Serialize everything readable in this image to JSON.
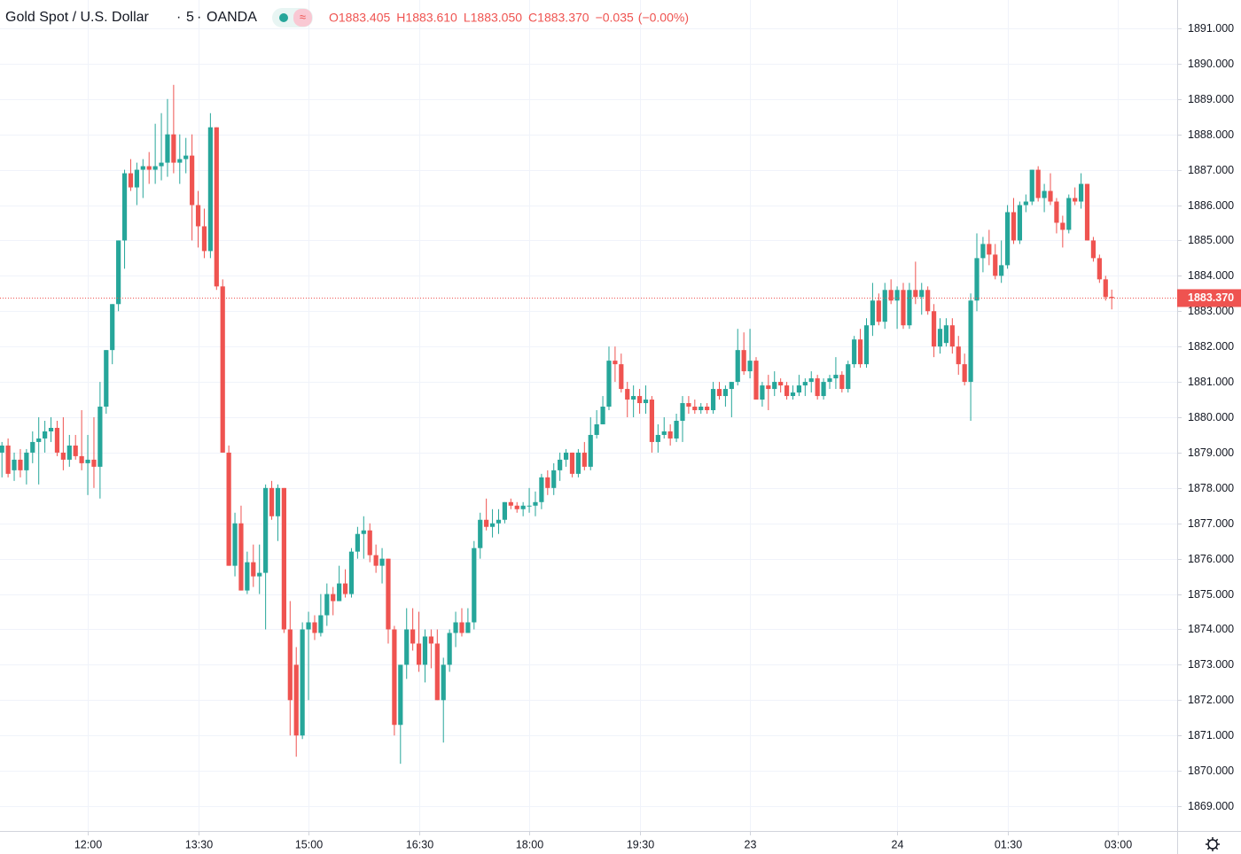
{
  "header": {
    "symbol": "Gold Spot / U.S. Dollar",
    "interval": "5",
    "exchange": "OANDA",
    "ohlc": [
      {
        "label": "O",
        "value": "1883.405"
      },
      {
        "label": "H",
        "value": "1883.610"
      },
      {
        "label": "L",
        "value": "1883.050"
      },
      {
        "label": "C",
        "value": "1883.370"
      }
    ],
    "change": "−0.035",
    "change_percent": "(−0.00%)"
  },
  "chart_data": {
    "type": "candlestick",
    "up_color": "#26a69a",
    "down_color": "#ef5350",
    "grid": true,
    "ylim": [
      1868.3,
      1891.8
    ],
    "yticks": [
      {
        "value": 1869,
        "label": "1869.000"
      },
      {
        "value": 1870,
        "label": "1870.000"
      },
      {
        "value": 1871,
        "label": "1871.000"
      },
      {
        "value": 1872,
        "label": "1872.000"
      },
      {
        "value": 1873,
        "label": "1873.000"
      },
      {
        "value": 1874,
        "label": "1874.000"
      },
      {
        "value": 1875,
        "label": "1875.000"
      },
      {
        "value": 1876,
        "label": "1876.000"
      },
      {
        "value": 1877,
        "label": "1877.000"
      },
      {
        "value": 1878,
        "label": "1878.000"
      },
      {
        "value": 1879,
        "label": "1879.000"
      },
      {
        "value": 1880,
        "label": "1880.000"
      },
      {
        "value": 1881,
        "label": "1881.000"
      },
      {
        "value": 1882,
        "label": "1882.000"
      },
      {
        "value": 1883,
        "label": "1883.000"
      },
      {
        "value": 1884,
        "label": "1884.000"
      },
      {
        "value": 1885,
        "label": "1885.000"
      },
      {
        "value": 1886,
        "label": "1886.000"
      },
      {
        "value": 1887,
        "label": "1887.000"
      },
      {
        "value": 1888,
        "label": "1888.000"
      },
      {
        "value": 1889,
        "label": "1889.000"
      },
      {
        "value": 1890,
        "label": "1890.000"
      },
      {
        "value": 1891,
        "label": "1891.000"
      }
    ],
    "last_price": {
      "value": 1883.37,
      "label": "1883.370"
    },
    "categories": [
      null,
      null,
      null,
      null,
      null,
      null,
      null,
      null,
      null,
      null,
      null,
      null,
      null,
      null,
      "12:00",
      null,
      null,
      null,
      null,
      null,
      null,
      null,
      null,
      null,
      null,
      null,
      null,
      null,
      null,
      null,
      null,
      null,
      "13:30",
      null,
      null,
      null,
      null,
      null,
      null,
      null,
      null,
      null,
      null,
      null,
      null,
      null,
      null,
      null,
      null,
      null,
      "15:00",
      null,
      null,
      null,
      null,
      null,
      null,
      null,
      null,
      null,
      null,
      null,
      null,
      null,
      null,
      null,
      null,
      null,
      "16:30",
      null,
      null,
      null,
      null,
      null,
      null,
      null,
      null,
      null,
      null,
      null,
      null,
      null,
      null,
      null,
      null,
      null,
      "18:00",
      null,
      null,
      null,
      null,
      null,
      null,
      null,
      null,
      null,
      null,
      null,
      null,
      null,
      null,
      null,
      null,
      null,
      "19:30",
      null,
      null,
      null,
      null,
      null,
      null,
      null,
      null,
      null,
      null,
      null,
      null,
      null,
      null,
      null,
      null,
      null,
      "23",
      null,
      null,
      null,
      null,
      null,
      null,
      null,
      null,
      null,
      null,
      null,
      null,
      null,
      null,
      null,
      null,
      null,
      null,
      null,
      null,
      null,
      null,
      null,
      "24",
      null,
      null,
      null,
      null,
      null,
      null,
      null,
      null,
      null,
      null,
      null,
      null,
      null,
      null,
      null,
      null,
      null,
      "01:30",
      null,
      null,
      null,
      null,
      null,
      null,
      null,
      null,
      null,
      null,
      null,
      null,
      null,
      null,
      null,
      null,
      null,
      "03:00"
    ],
    "open": [
      1879.0,
      1879.2,
      1878.5,
      1878.8,
      1878.5,
      1879.0,
      1879.3,
      1879.4,
      1879.6,
      1879.7,
      1879.0,
      1878.8,
      1879.2,
      1878.9,
      1878.7,
      1878.8,
      1878.6,
      1880.3,
      1881.9,
      1883.2,
      1885.0,
      1886.9,
      1886.5,
      1887.0,
      1887.1,
      1887.0,
      1887.1,
      1887.2,
      1888.0,
      1887.2,
      1887.3,
      1887.4,
      1886.0,
      1885.4,
      1884.7,
      1888.2,
      1883.7,
      1879.0,
      1875.8,
      1877.0,
      1875.1,
      1875.9,
      1875.5,
      1875.6,
      1878.0,
      1877.2,
      1878.0,
      1874.0,
      1873.0,
      1871.0,
      1874.0,
      1874.2,
      1873.9,
      1874.4,
      1875.0,
      1874.8,
      1875.3,
      1875.0,
      1876.2,
      1876.7,
      1876.8,
      1876.1,
      1875.8,
      1876.0,
      1874.0,
      1871.3,
      1873.0,
      1874.0,
      1873.6,
      1873.0,
      1873.8,
      1873.6,
      1872.0,
      1873.0,
      1873.9,
      1874.2,
      1873.9,
      1874.2,
      1876.3,
      1877.1,
      1876.9,
      1877.0,
      1877.1,
      1877.6,
      1877.5,
      1877.4,
      1877.5,
      1877.5,
      1877.6,
      1878.3,
      1878.0,
      1878.5,
      1878.8,
      1879.0,
      1878.4,
      1879.0,
      1878.6,
      1879.5,
      1879.8,
      1880.3,
      1881.6,
      1881.5,
      1880.8,
      1880.5,
      1880.6,
      1880.4,
      1880.5,
      1879.3,
      1879.5,
      1879.6,
      1879.4,
      1879.9,
      1880.4,
      1880.3,
      1880.2,
      1880.3,
      1880.2,
      1880.8,
      1880.6,
      1880.8,
      1881.0,
      1881.9,
      1881.3,
      1881.6,
      1880.5,
      1880.9,
      1880.8,
      1881.0,
      1880.9,
      1880.6,
      1880.7,
      1880.9,
      1881.0,
      1881.1,
      1880.6,
      1881.0,
      1881.1,
      1881.2,
      1880.8,
      1881.5,
      1882.2,
      1881.5,
      1882.6,
      1883.3,
      1882.7,
      1883.6,
      1883.3,
      1883.6,
      1882.6,
      1883.6,
      1883.4,
      1883.6,
      1883.0,
      1882.0,
      1882.1,
      1882.6,
      1882.0,
      1881.5,
      1881.0,
      1883.3,
      1884.5,
      1884.9,
      1884.6,
      1884.0,
      1884.3,
      1885.8,
      1885.0,
      1886.0,
      1886.1,
      1887.0,
      1886.2,
      1886.4,
      1886.1,
      1885.5,
      1885.3,
      1886.2,
      1886.1,
      1886.6,
      1885.0,
      1884.5,
      1883.9,
      1883.405,
      null
    ],
    "high": [
      1879.3,
      1879.4,
      1879.0,
      1879.1,
      1879.1,
      1879.6,
      1880.0,
      1879.9,
      1880.0,
      1879.9,
      1880.0,
      1879.5,
      1879.5,
      1880.2,
      1879.5,
      1880.0,
      1881.0,
      1881.9,
      1883.2,
      1885.0,
      1887.0,
      1887.3,
      1887.2,
      1887.3,
      1887.5,
      1888.3,
      1888.6,
      1889.0,
      1889.4,
      1888.0,
      1887.9,
      1888.0,
      1886.4,
      1885.9,
      1888.6,
      1888.2,
      1883.9,
      1879.2,
      1877.3,
      1877.5,
      1876.2,
      1876.4,
      1876.4,
      1878.1,
      1878.2,
      1878.1,
      1878.0,
      1874.8,
      1873.5,
      1874.2,
      1874.5,
      1874.4,
      1875.0,
      1875.3,
      1875.2,
      1875.8,
      1875.7,
      1876.3,
      1876.9,
      1877.2,
      1877.0,
      1876.4,
      1876.3,
      1876.0,
      1874.1,
      1873.0,
      1874.6,
      1874.6,
      1874.5,
      1874.0,
      1874.0,
      1874.0,
      1873.2,
      1874.0,
      1874.5,
      1874.6,
      1874.6,
      1876.5,
      1877.3,
      1877.7,
      1877.4,
      1877.4,
      1877.6,
      1877.7,
      1877.6,
      1877.6,
      1878.0,
      1877.9,
      1878.4,
      1878.5,
      1878.7,
      1879.0,
      1879.1,
      1879.0,
      1879.1,
      1879.3,
      1880.0,
      1880.2,
      1880.6,
      1882.0,
      1882.0,
      1881.8,
      1881.0,
      1880.9,
      1880.8,
      1880.9,
      1880.6,
      1879.8,
      1880.0,
      1879.8,
      1880.1,
      1880.6,
      1880.6,
      1880.5,
      1880.4,
      1880.4,
      1881.0,
      1881.0,
      1880.9,
      1881.0,
      1882.5,
      1882.4,
      1882.5,
      1881.7,
      1881.0,
      1881.2,
      1881.3,
      1881.1,
      1881.0,
      1880.9,
      1881.2,
      1881.1,
      1881.3,
      1881.2,
      1881.1,
      1881.2,
      1881.7,
      1881.3,
      1881.6,
      1882.3,
      1882.5,
      1882.8,
      1883.8,
      1883.5,
      1883.8,
      1883.9,
      1883.7,
      1883.8,
      1883.8,
      1884.4,
      1883.8,
      1883.7,
      1883.2,
      1882.8,
      1882.8,
      1882.8,
      1882.3,
      1881.8,
      1883.5,
      1885.2,
      1885.1,
      1885.3,
      1884.9,
      1885.0,
      1886.0,
      1886.2,
      1886.1,
      1886.3,
      1887.0,
      1887.1,
      1886.6,
      1886.9,
      1886.2,
      1885.7,
      1886.3,
      1886.5,
      1886.9,
      1886.6,
      1885.1,
      1884.6,
      1884.0,
      1883.61,
      null
    ],
    "low": [
      1878.3,
      1878.3,
      1878.2,
      1878.3,
      1878.1,
      1878.7,
      1878.1,
      1879.0,
      1879.3,
      1878.9,
      1878.5,
      1878.6,
      1878.8,
      1878.5,
      1877.8,
      1878.0,
      1877.7,
      1880.1,
      1881.5,
      1883.0,
      1884.2,
      1886.4,
      1886.0,
      1886.2,
      1886.6,
      1886.6,
      1886.7,
      1886.8,
      1886.9,
      1886.6,
      1886.9,
      1885.0,
      1884.8,
      1884.5,
      1884.5,
      1883.6,
      1879.0,
      1875.8,
      1875.5,
      1875.1,
      1875.0,
      1875.2,
      1875.0,
      1874.0,
      1877.1,
      1876.5,
      1873.9,
      1871.0,
      1870.4,
      1870.9,
      1872.0,
      1873.7,
      1873.8,
      1874.1,
      1874.4,
      1874.8,
      1874.9,
      1874.9,
      1876.0,
      1876.0,
      1875.9,
      1875.6,
      1875.3,
      1873.6,
      1871.0,
      1870.2,
      1872.6,
      1873.4,
      1872.8,
      1872.5,
      1872.9,
      1872.0,
      1870.8,
      1872.8,
      1873.5,
      1873.8,
      1873.9,
      1874.0,
      1876.0,
      1876.8,
      1876.6,
      1876.7,
      1877.0,
      1877.4,
      1877.3,
      1877.2,
      1877.3,
      1877.2,
      1877.4,
      1877.8,
      1877.8,
      1878.2,
      1878.6,
      1878.3,
      1878.3,
      1878.5,
      1878.5,
      1879.4,
      1879.8,
      1880.2,
      1881.0,
      1880.7,
      1880.0,
      1880.0,
      1880.1,
      1880.1,
      1879.0,
      1879.0,
      1879.4,
      1879.2,
      1879.3,
      1879.3,
      1880.1,
      1880.1,
      1880.1,
      1880.1,
      1880.1,
      1880.5,
      1880.3,
      1880.0,
      1880.9,
      1881.2,
      1881.1,
      1880.5,
      1880.3,
      1880.2,
      1880.6,
      1880.7,
      1880.5,
      1880.5,
      1880.6,
      1880.6,
      1880.7,
      1880.5,
      1880.5,
      1880.8,
      1880.8,
      1880.7,
      1880.7,
      1881.4,
      1881.4,
      1881.4,
      1882.3,
      1882.6,
      1882.5,
      1883.2,
      1882.5,
      1882.5,
      1882.5,
      1883.2,
      1882.9,
      1882.9,
      1881.7,
      1881.8,
      1882.0,
      1881.8,
      1881.2,
      1880.9,
      1879.9,
      1883.0,
      1884.1,
      1884.3,
      1883.9,
      1883.8,
      1884.2,
      1884.9,
      1884.9,
      1885.8,
      1886.0,
      1886.1,
      1885.8,
      1886.0,
      1885.2,
      1884.8,
      1885.2,
      1886.0,
      1885.9,
      1885.0,
      1884.4,
      1883.8,
      1883.3,
      1883.05,
      null
    ],
    "close": [
      1879.2,
      1878.4,
      1878.8,
      1878.5,
      1879.0,
      1879.3,
      1879.4,
      1879.6,
      1879.7,
      1879.0,
      1878.8,
      1879.2,
      1878.9,
      1878.7,
      1878.8,
      1878.6,
      1880.3,
      1881.9,
      1883.2,
      1885.0,
      1886.9,
      1886.5,
      1887.0,
      1887.1,
      1887.0,
      1887.1,
      1887.2,
      1888.0,
      1887.2,
      1887.3,
      1887.4,
      1886.0,
      1885.4,
      1884.7,
      1888.2,
      1883.7,
      1879.0,
      1875.8,
      1877.0,
      1875.1,
      1875.9,
      1875.5,
      1875.6,
      1878.0,
      1877.2,
      1878.0,
      1874.0,
      1872.0,
      1871.0,
      1874.0,
      1874.2,
      1873.9,
      1874.4,
      1875.0,
      1874.8,
      1875.3,
      1875.0,
      1876.2,
      1876.7,
      1876.8,
      1876.1,
      1875.8,
      1876.0,
      1874.0,
      1871.3,
      1873.0,
      1874.0,
      1873.6,
      1873.0,
      1873.8,
      1873.6,
      1872.0,
      1873.0,
      1873.9,
      1874.2,
      1873.9,
      1874.2,
      1876.3,
      1877.1,
      1876.9,
      1877.0,
      1877.1,
      1877.6,
      1877.5,
      1877.4,
      1877.5,
      1877.5,
      1877.6,
      1878.3,
      1878.0,
      1878.5,
      1878.8,
      1879.0,
      1878.4,
      1879.0,
      1878.6,
      1879.5,
      1879.8,
      1880.3,
      1881.6,
      1881.5,
      1880.8,
      1880.5,
      1880.6,
      1880.4,
      1880.5,
      1879.3,
      1879.5,
      1879.6,
      1879.4,
      1879.9,
      1880.4,
      1880.3,
      1880.2,
      1880.3,
      1880.2,
      1880.8,
      1880.6,
      1880.8,
      1881.0,
      1881.9,
      1881.3,
      1881.6,
      1880.5,
      1880.9,
      1880.8,
      1881.0,
      1880.9,
      1880.6,
      1880.7,
      1880.9,
      1881.0,
      1881.1,
      1880.6,
      1881.0,
      1881.1,
      1881.2,
      1880.8,
      1881.5,
      1882.2,
      1881.5,
      1882.6,
      1883.3,
      1882.7,
      1883.6,
      1883.3,
      1883.6,
      1882.6,
      1883.6,
      1883.4,
      1883.6,
      1883.0,
      1882.0,
      1882.5,
      1882.6,
      1882.0,
      1881.5,
      1881.0,
      1883.3,
      1884.5,
      1884.9,
      1884.6,
      1884.0,
      1884.3,
      1885.8,
      1885.0,
      1886.0,
      1886.1,
      1887.0,
      1886.2,
      1886.4,
      1886.1,
      1885.5,
      1885.3,
      1886.2,
      1886.1,
      1886.6,
      1885.0,
      1884.5,
      1883.9,
      1883.4,
      1883.37,
      null
    ]
  }
}
